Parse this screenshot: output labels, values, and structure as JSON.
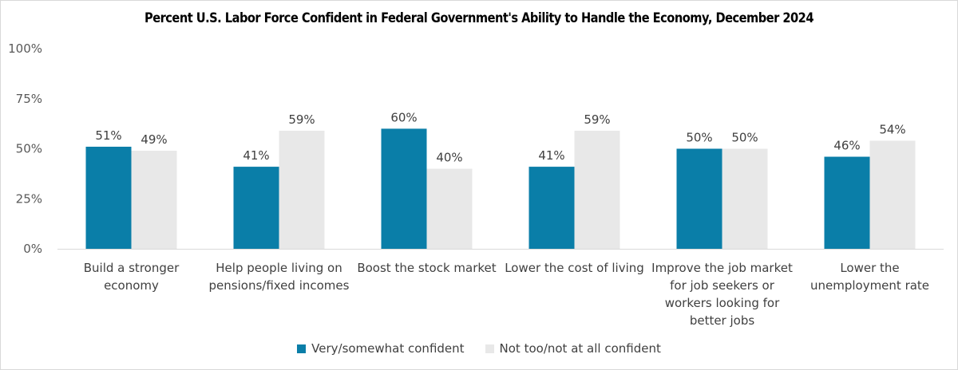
{
  "chart_data": {
    "type": "bar",
    "title": "Percent U.S. Labor Force Confident in Federal Government's Ability to Handle the Economy, December 2024",
    "categories": [
      [
        "Build a stronger",
        "economy"
      ],
      [
        "Help people living on",
        "pensions/fixed incomes"
      ],
      [
        "Boost the stock market"
      ],
      [
        "Lower the cost of living"
      ],
      [
        "Improve the job market",
        "for job seekers or",
        "workers looking for",
        "better jobs"
      ],
      [
        "Lower the",
        "unemployment rate"
      ]
    ],
    "series": [
      {
        "name": "Very/somewhat confident",
        "color": "#0a7ea8",
        "values": [
          51,
          41,
          60,
          41,
          50,
          46
        ]
      },
      {
        "name": "Not too/not at all confident",
        "color": "#e8e8e8",
        "values": [
          49,
          59,
          40,
          59,
          50,
          54
        ]
      }
    ],
    "yticks": [
      "0%",
      "25%",
      "50%",
      "75%",
      "100%"
    ],
    "ylim": [
      0,
      100
    ],
    "value_suffix": "%",
    "grid": false,
    "legend_position": "bottom"
  }
}
